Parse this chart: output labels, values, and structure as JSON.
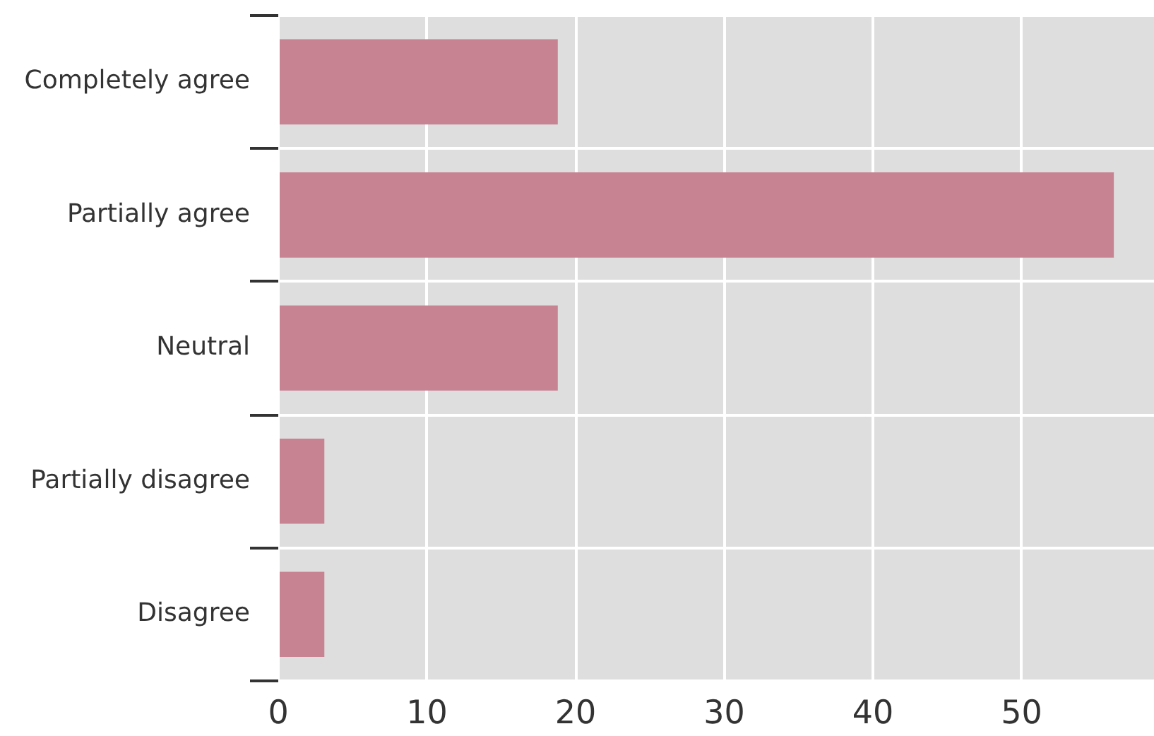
{
  "chart_data": {
    "type": "bar",
    "orientation": "horizontal",
    "categories": [
      "Completely agree",
      "Partially agree",
      "Neutral",
      "Partially disagree",
      "Disagree"
    ],
    "values": [
      18.8,
      56.2,
      18.8,
      3.1,
      3.1
    ],
    "color": "#c88393",
    "xlim": [
      0,
      58.9
    ],
    "xticks": [
      0,
      10,
      20,
      30,
      40,
      50
    ],
    "grid": true,
    "legend": false
  }
}
